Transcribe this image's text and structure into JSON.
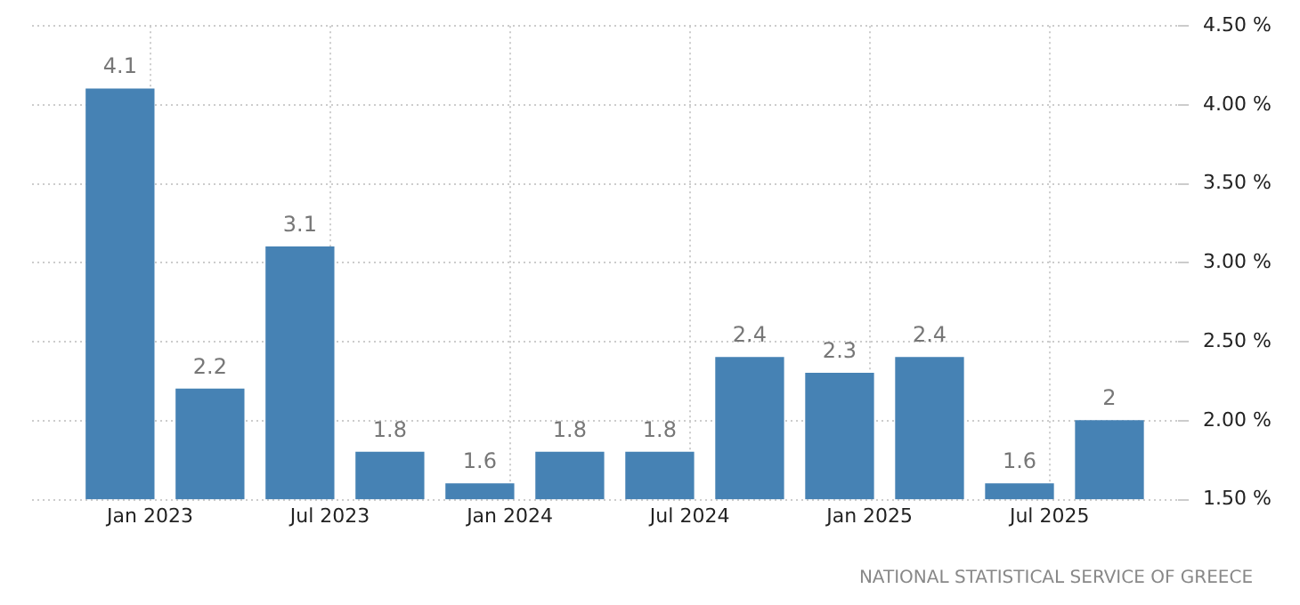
{
  "chart_data": {
    "type": "bar",
    "x": [
      "2022-12",
      "2023-03",
      "2023-06",
      "2023-09",
      "2023-12",
      "2024-03",
      "2024-06",
      "2024-09",
      "2024-12",
      "2025-03",
      "2025-06",
      "2025-09"
    ],
    "values": [
      4.1,
      2.2,
      3.1,
      1.8,
      1.6,
      1.8,
      1.8,
      2.4,
      2.3,
      2.4,
      1.6,
      2
    ],
    "color": "#4682b4",
    "data_labels": true,
    "xlim": [
      "2022-09-03",
      "2025-11-10"
    ],
    "xticks": [
      {
        "value": "2023-01",
        "label": "Jan 2023"
      },
      {
        "value": "2023-07",
        "label": "Jul 2023"
      },
      {
        "value": "2024-01",
        "label": "Jan 2024"
      },
      {
        "value": "2024-07",
        "label": "Jul 2024"
      },
      {
        "value": "2025-01",
        "label": "Jan 2025"
      },
      {
        "value": "2025-07",
        "label": "Jul 2025"
      }
    ],
    "ylim": [
      1.5,
      4.5
    ],
    "yticks": [
      {
        "value": 1.5,
        "label": "1.50 %"
      },
      {
        "value": 2,
        "label": "2.00 %"
      },
      {
        "value": 2.5,
        "label": "2.50 %"
      },
      {
        "value": 3,
        "label": "3.00 %"
      },
      {
        "value": 3.5,
        "label": "3.50 %"
      },
      {
        "value": 4,
        "label": "4.00 %"
      },
      {
        "value": 4.5,
        "label": "4.50 %"
      }
    ],
    "grid": true,
    "legend": false,
    "annotations": [
      "NATIONAL STATISTICAL SERVICE OF GREECE"
    ]
  }
}
